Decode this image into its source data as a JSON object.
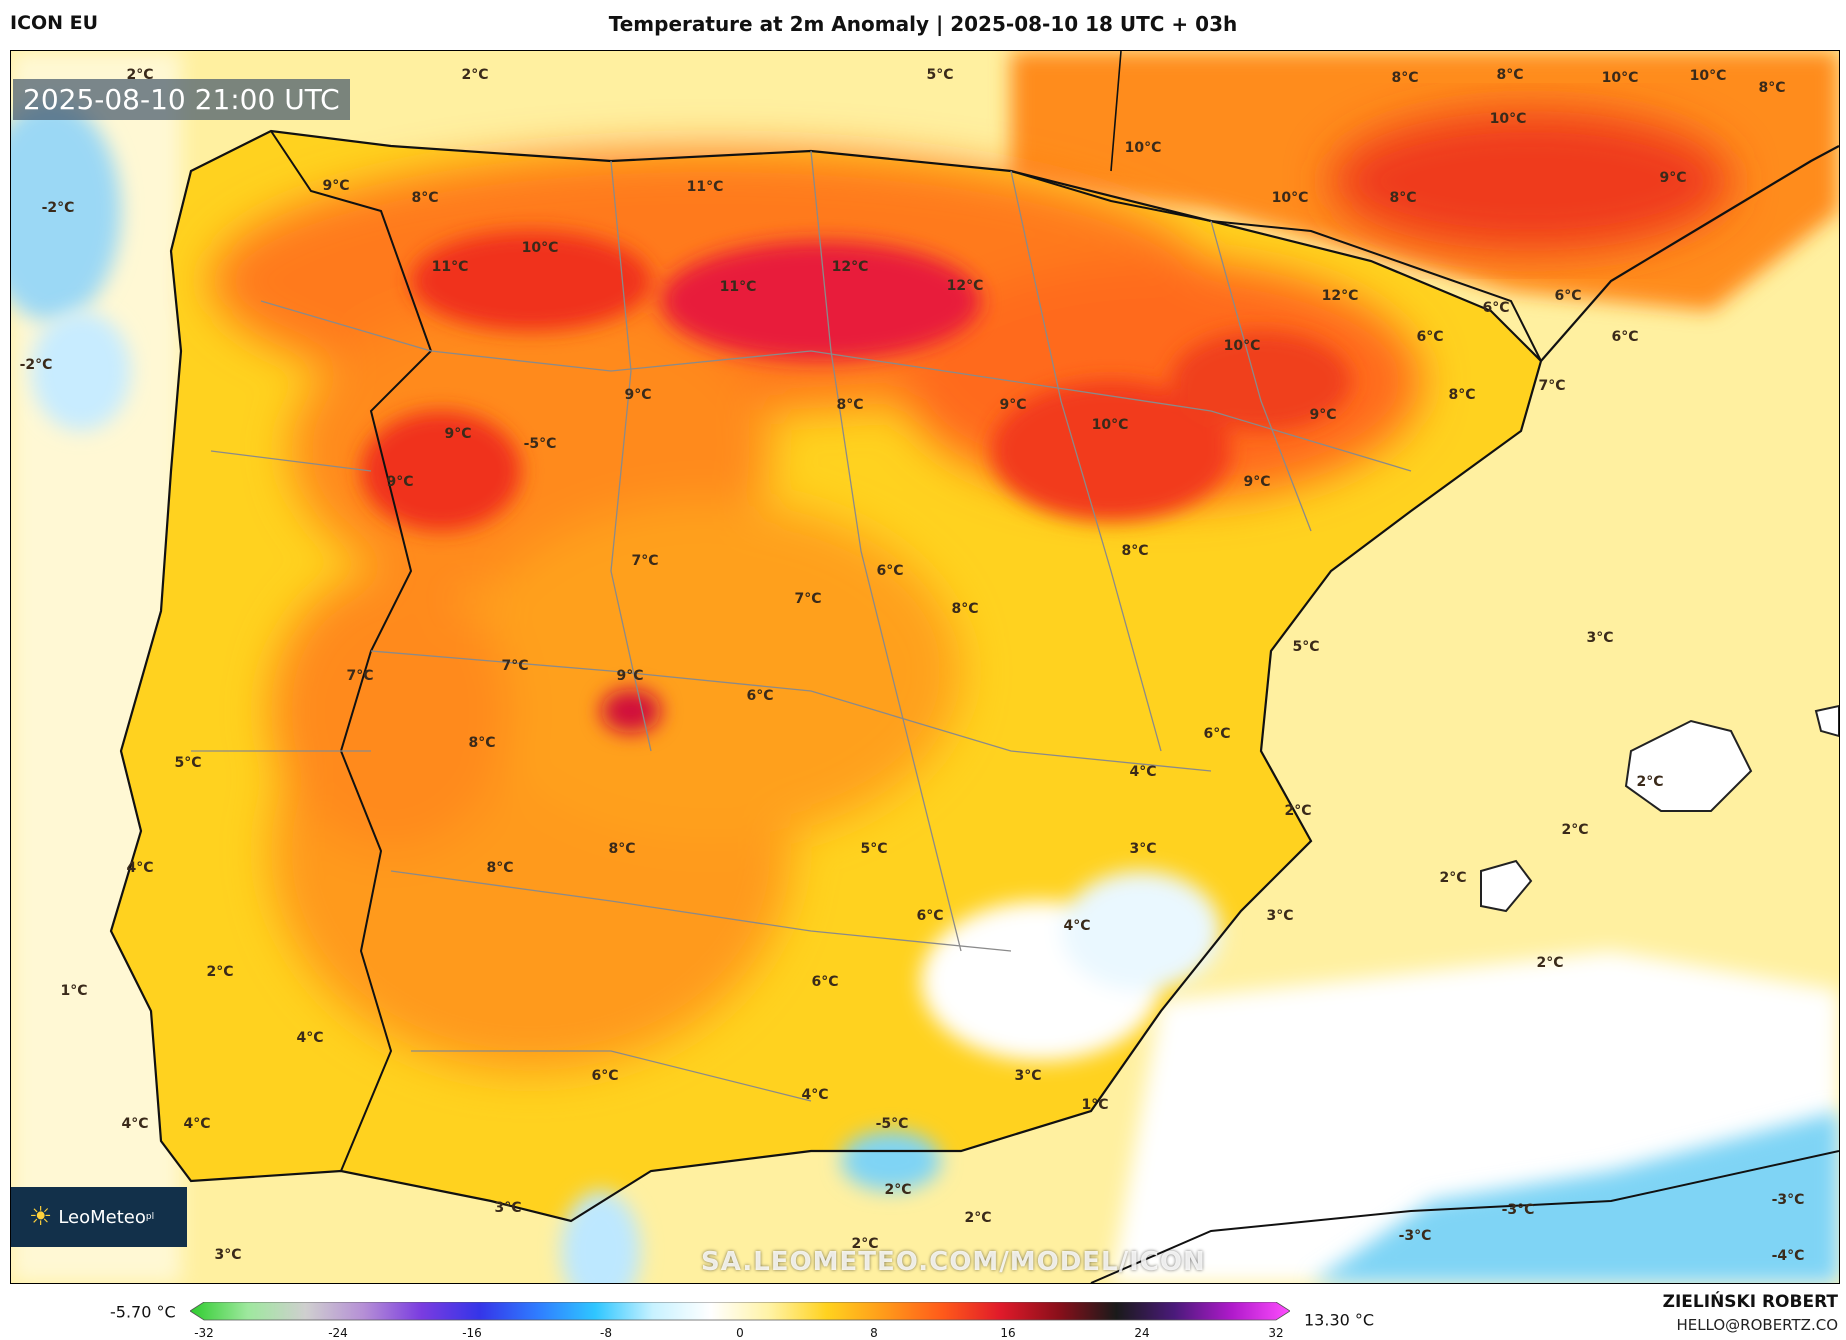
{
  "header": {
    "model": "ICON EU",
    "title": "Temperature at 2m Anomaly | 2025-08-10 18 UTC + 03h"
  },
  "map": {
    "timestamp": "2025-08-10 21:00 UTC",
    "watermark": "SA.LEOMETEO.COM/MODEL/ICON",
    "logo": {
      "name": "LeoMeteo",
      "suffix": "pl"
    },
    "labels": [
      {
        "text": "2°C"
      },
      {
        "text": "2°C"
      },
      {
        "text": "5°C"
      },
      {
        "text": "8°C"
      },
      {
        "text": "8°C"
      },
      {
        "text": "10°C"
      },
      {
        "text": "10°C"
      },
      {
        "text": "8°C"
      },
      {
        "text": "-2°C"
      },
      {
        "text": "9°C"
      },
      {
        "text": "8°C"
      },
      {
        "text": "11°C"
      },
      {
        "text": "10°C"
      },
      {
        "text": "10°C"
      },
      {
        "text": "10°C"
      },
      {
        "text": "8°C"
      },
      {
        "text": "9°C"
      },
      {
        "text": "11°C"
      },
      {
        "text": "10°C"
      },
      {
        "text": "12°C"
      },
      {
        "text": "11°C"
      },
      {
        "text": "12°C"
      },
      {
        "text": "12°C"
      },
      {
        "text": "6°C"
      },
      {
        "text": "6°C"
      },
      {
        "text": "-2°C"
      },
      {
        "text": "10°C"
      },
      {
        "text": "6°C"
      },
      {
        "text": "6°C"
      },
      {
        "text": "9°C"
      },
      {
        "text": "8°C"
      },
      {
        "text": "9°C"
      },
      {
        "text": "10°C"
      },
      {
        "text": "7°C"
      },
      {
        "text": "9°C"
      },
      {
        "text": "8°C"
      },
      {
        "text": "9°C"
      },
      {
        "text": "-5°C"
      },
      {
        "text": "9°C"
      },
      {
        "text": "9°C"
      },
      {
        "text": "8°C"
      },
      {
        "text": "6°C"
      },
      {
        "text": "7°C"
      },
      {
        "text": "7°C"
      },
      {
        "text": "8°C"
      },
      {
        "text": "5°C"
      },
      {
        "text": "3°C"
      },
      {
        "text": "7°C"
      },
      {
        "text": "7°C"
      },
      {
        "text": "9°C"
      },
      {
        "text": "6°C"
      },
      {
        "text": "8°C"
      },
      {
        "text": "5°C"
      },
      {
        "text": "6°C"
      },
      {
        "text": "4°C"
      },
      {
        "text": "2°C"
      },
      {
        "text": "2°C"
      },
      {
        "text": "4°C"
      },
      {
        "text": "8°C"
      },
      {
        "text": "8°C"
      },
      {
        "text": "5°C"
      },
      {
        "text": "3°C"
      },
      {
        "text": "2°C"
      },
      {
        "text": "2°C"
      },
      {
        "text": "6°C"
      },
      {
        "text": "4°C"
      },
      {
        "text": "3°C"
      },
      {
        "text": "1°C"
      },
      {
        "text": "2°C"
      },
      {
        "text": "2°C"
      },
      {
        "text": "6°C"
      },
      {
        "text": "4°C"
      },
      {
        "text": "6°C"
      },
      {
        "text": "3°C"
      },
      {
        "text": "4°C"
      },
      {
        "text": "1°C"
      },
      {
        "text": "-5°C"
      },
      {
        "text": "4°C"
      },
      {
        "text": "2°C"
      },
      {
        "text": "2°C"
      },
      {
        "text": "-3°C"
      },
      {
        "text": "-3°C"
      },
      {
        "text": "-3°C"
      },
      {
        "text": "3°C"
      },
      {
        "text": "4°C"
      },
      {
        "text": "2°C"
      },
      {
        "text": "-4°C"
      },
      {
        "text": "3°C"
      }
    ]
  },
  "legend": {
    "min_label": "-5.70 °C",
    "max_label": "13.30 °C",
    "ticks": [
      "-32",
      "-24",
      "-16",
      "-8",
      "0",
      "8",
      "16",
      "24",
      "32"
    ],
    "color_stops": [
      "#2ecc2e",
      "#9ee89e",
      "#cfcfcf",
      "#b58fd6",
      "#7a3ce0",
      "#3535e8",
      "#2f7cff",
      "#2fc6ff",
      "#c8f2ff",
      "#ffffff",
      "#fff3a6",
      "#ffd21f",
      "#ff9a1a",
      "#ff5a1a",
      "#e01a2a",
      "#8a0f1a",
      "#1a1a1a",
      "#4a1a7a",
      "#b01acb",
      "#ff4dff"
    ]
  },
  "credits": {
    "author": "ZIELIŃSKI ROBERT",
    "email": "HELLO@ROBERTZ.CO"
  }
}
